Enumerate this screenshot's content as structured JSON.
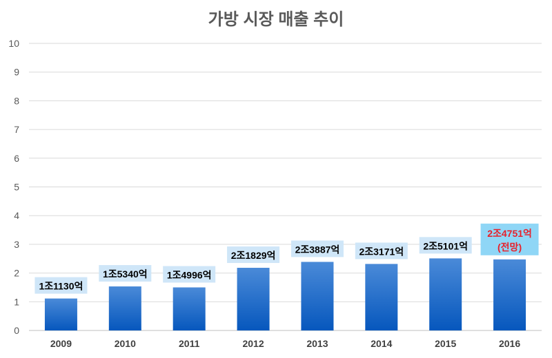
{
  "chart_data": {
    "type": "bar",
    "title": "가방 시장 매출 추이",
    "xlabel": "",
    "ylabel": "",
    "ylim": [
      0,
      10
    ],
    "yticks": [
      "0",
      "1",
      "2",
      "3",
      "4",
      "5",
      "6",
      "7",
      "8",
      "9",
      "10"
    ],
    "grid": true,
    "categories": [
      "2009",
      "2010",
      "2011",
      "2012",
      "2013",
      "2014",
      "2015",
      "2016"
    ],
    "values": [
      1.113,
      1.534,
      1.4996,
      2.1829,
      2.3887,
      2.3171,
      2.5101,
      2.4751
    ],
    "data_labels": [
      "1조1130억",
      "1조5340억",
      "1조4996억",
      "2조1829억",
      "2조3887억",
      "2조3171억",
      "2조5101억",
      "2조4751억"
    ],
    "annotations": {
      "2016": "(전망)"
    },
    "colors": {
      "bar_top": "#4a8ad8",
      "bar_bottom": "#0657bd",
      "label_bg": "#cfe6f8",
      "highlight_label_bg": "#8fd6f6",
      "highlight_text": "#e8202a"
    }
  }
}
